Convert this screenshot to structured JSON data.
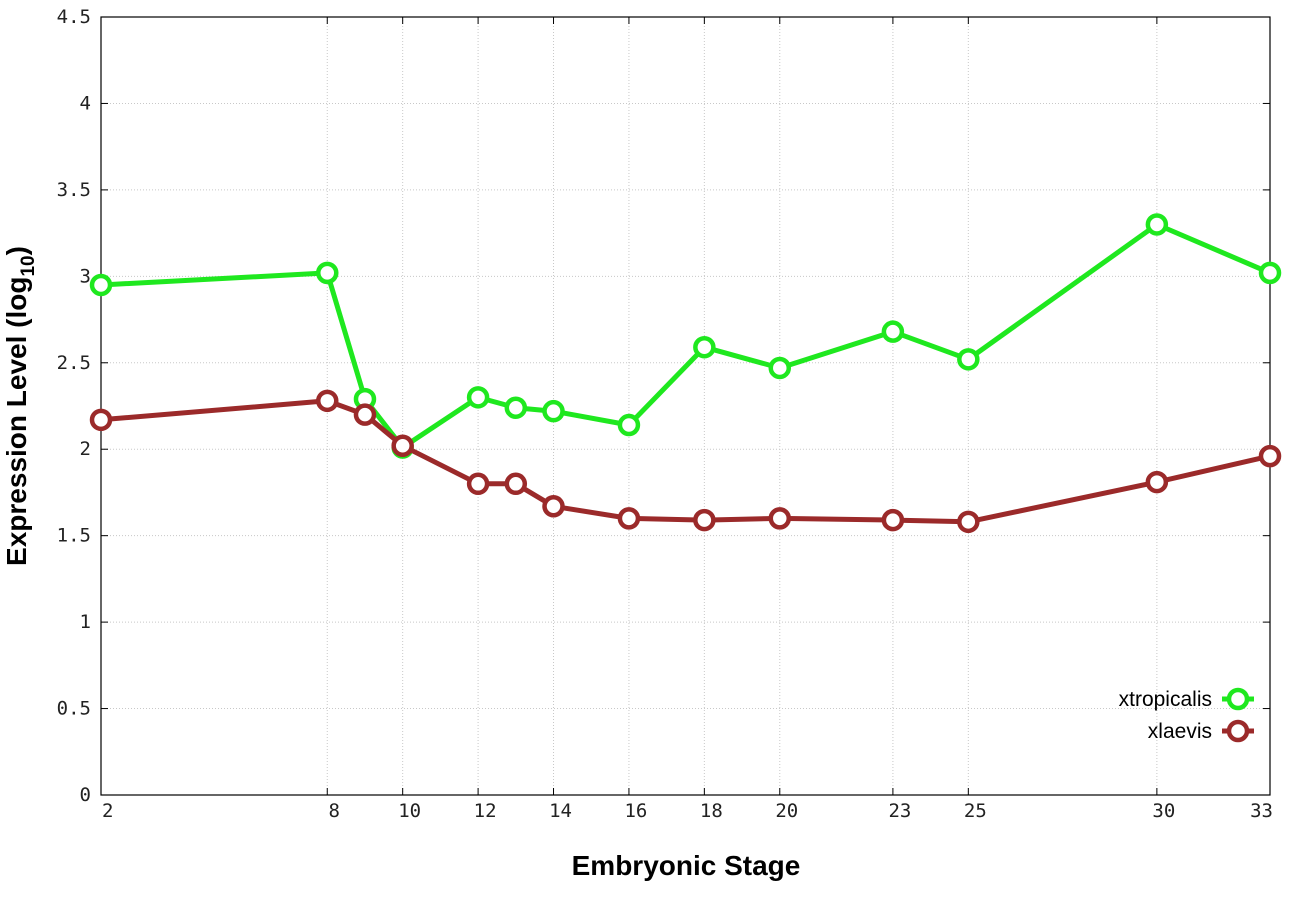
{
  "chart_data": {
    "type": "line",
    "xlabel": "Embryonic Stage",
    "ylabel_main": "Expression Level (log",
    "ylabel_sub": "10",
    "ylabel_close": ")",
    "x": [
      2,
      8,
      9,
      10,
      12,
      13,
      14,
      16,
      18,
      20,
      23,
      25,
      30,
      33
    ],
    "x_tick_labels": [
      "2",
      "8",
      "10",
      "12",
      "14",
      "16",
      "18",
      "20",
      "23",
      "25",
      "30",
      "33"
    ],
    "y_ticks": [
      "0",
      "0.5",
      "1",
      "1.5",
      "2",
      "2.5",
      "3",
      "3.5",
      "4",
      "4.5"
    ],
    "ylim": [
      0,
      4.5
    ],
    "xlim": [
      2,
      33
    ],
    "grid": true,
    "legend_position": "bottom-right",
    "series": [
      {
        "name": "xtropicalis",
        "color": "#1fe81f",
        "values": [
          2.95,
          3.02,
          2.29,
          2.01,
          2.3,
          2.24,
          2.22,
          2.14,
          2.59,
          2.47,
          2.68,
          2.52,
          3.3,
          3.02
        ]
      },
      {
        "name": "xlaevis",
        "color": "#9b2a2a",
        "values": [
          2.17,
          2.28,
          2.2,
          2.02,
          1.8,
          1.8,
          1.67,
          1.6,
          1.59,
          1.6,
          1.59,
          1.58,
          1.81,
          1.96
        ]
      }
    ]
  }
}
